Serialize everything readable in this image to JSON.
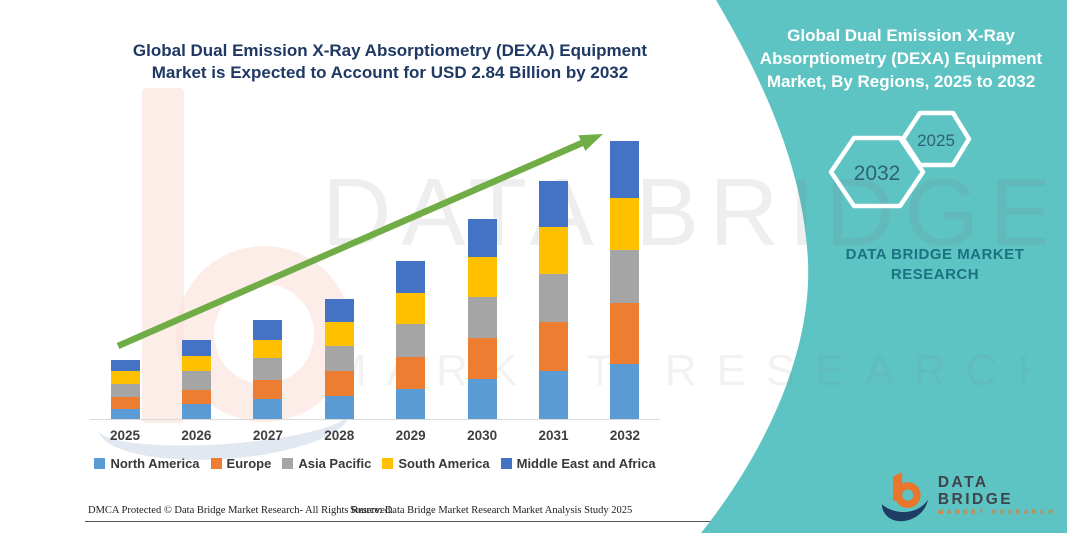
{
  "colors": {
    "panel_teal": "#5ec3c3",
    "title_navy": "#1f3864",
    "arrow_green": "#70ad47",
    "axis_gray": "#d9d9d9",
    "hex_label": "#2c6376",
    "brand_teal": "#1b7280",
    "logo_orange": "#e8762d",
    "logo_navy": "#1e3c64"
  },
  "header": {
    "title_line1": "Global Dual Emission X-Ray Absorptiometry (DEXA) Equipment",
    "title_line2": "Market is Expected to Account for USD 2.84 Billion by 2032"
  },
  "chart_data": {
    "type": "bar",
    "stacked": true,
    "title": "Global Dual Emission X-Ray Absorptiometry (DEXA) Equipment Market is Expected to Account for USD 2.84 Billion by 2032",
    "unit": "USD Billion",
    "categories": [
      "2025",
      "2026",
      "2027",
      "2028",
      "2029",
      "2030",
      "2031",
      "2032"
    ],
    "series": [
      {
        "name": "North America",
        "color": "#5B9BD5",
        "values": [
          0.1,
          0.15,
          0.2,
          0.24,
          0.31,
          0.41,
          0.49,
          0.56
        ]
      },
      {
        "name": "Europe",
        "color": "#ED7D31",
        "values": [
          0.12,
          0.15,
          0.2,
          0.25,
          0.32,
          0.42,
          0.5,
          0.62
        ]
      },
      {
        "name": "Asia Pacific",
        "color": "#A5A5A5",
        "values": [
          0.14,
          0.19,
          0.22,
          0.26,
          0.34,
          0.41,
          0.49,
          0.54
        ]
      },
      {
        "name": "South America",
        "color": "#FFC000",
        "values": [
          0.13,
          0.15,
          0.19,
          0.24,
          0.32,
          0.41,
          0.48,
          0.54
        ]
      },
      {
        "name": "Middle East and Africa",
        "color": "#4472C4",
        "values": [
          0.11,
          0.17,
          0.2,
          0.24,
          0.32,
          0.39,
          0.47,
          0.58
        ]
      }
    ],
    "totals": [
      0.6,
      0.81,
      1.01,
      1.23,
      1.61,
      2.04,
      2.43,
      2.84
    ],
    "ylim": [
      0,
      3
    ],
    "grid": false,
    "legend_position": "bottom",
    "trend_arrow": true
  },
  "side_panel": {
    "title": "Global Dual Emission X-Ray Absorptiometry (DEXA) Equipment Market, By Regions, 2025 to 2032",
    "hexagon_back_label": "2032",
    "hexagon_front_label": "2025",
    "brand": "DATA BRIDGE MARKET RESEARCH"
  },
  "watermark": {
    "line1": "DATA BRIDGE",
    "line2": "MARKET RESEARCH"
  },
  "logo": {
    "name": "DATA BRIDGE",
    "tagline": "MARKET RESEARCH"
  },
  "footer": {
    "dmca": "DMCA Protected © Data Bridge Market Research-  All Rights Reserved.",
    "source": "Source: Data Bridge Market Research  Market Analysis Study 2025"
  }
}
